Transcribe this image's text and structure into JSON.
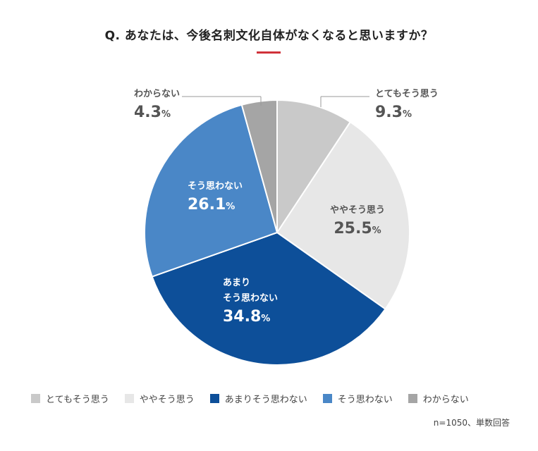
{
  "title": "Q. あなたは、今後名刺文化自体がなくなると思いますか？",
  "note": "n=1050、単数回答",
  "chart_data": {
    "type": "pie",
    "categories": [
      "とてもそう思う",
      "ややそう思う",
      "あまりそう思わない",
      "そう思わない",
      "わからない"
    ],
    "values": [
      9.3,
      25.5,
      34.8,
      26.1,
      4.3
    ],
    "value_suffix": "%",
    "slice_labels": [
      "とてもそう思う",
      "ややそう思う",
      "あまり\nそう思わない",
      "そう思わない",
      "わからない"
    ],
    "colors": [
      "#c9c9c9",
      "#e7e7e7",
      "#0d4f99",
      "#4a87c7",
      "#a5a5a5"
    ],
    "legend_position": "bottom",
    "start_angle": "12 o'clock",
    "direction": "clockwise"
  },
  "legend": [
    {
      "label": "とてもそう思う",
      "color": "#c9c9c9"
    },
    {
      "label": "ややそう思う",
      "color": "#e7e7e7"
    },
    {
      "label": "あまりそう思わない",
      "color": "#0d4f99"
    },
    {
      "label": "そう思わない",
      "color": "#4a87c7"
    },
    {
      "label": "わからない",
      "color": "#a5a5a5"
    }
  ]
}
